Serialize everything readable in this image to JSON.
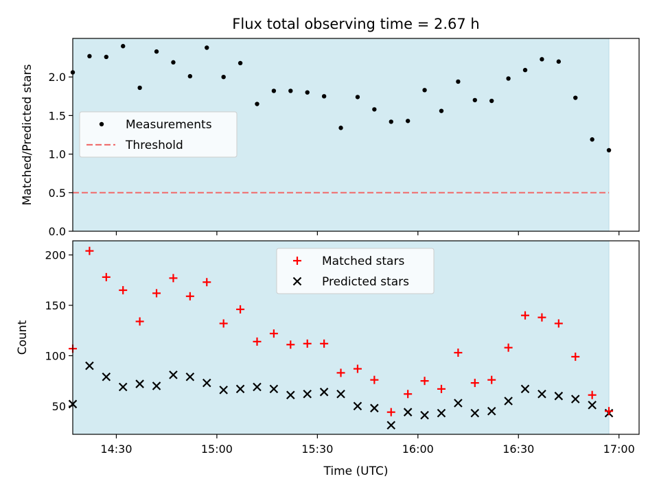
{
  "chart_data": [
    {
      "type": "scatter",
      "title": "Flux total observing time = 2.67 h",
      "xlabel": "",
      "ylabel": "Matched/Predicted stars",
      "xlim": [
        "14:17",
        "17:06"
      ],
      "ylim": [
        0,
        2.5
      ],
      "yticks": [
        "0.0",
        "0.5",
        "1.0",
        "1.5",
        "2.0"
      ],
      "grid": false,
      "legend_position": "center-left",
      "shaded_span": [
        "14:17",
        "16:57"
      ],
      "threshold": 0.5,
      "series": [
        {
          "name": "Measurements",
          "color": "#000000",
          "marker": "dot",
          "x": [
            "14:17",
            "14:22",
            "14:27",
            "14:32",
            "14:37",
            "14:42",
            "14:47",
            "14:52",
            "14:57",
            "15:02",
            "15:07",
            "15:12",
            "15:17",
            "15:22",
            "15:27",
            "15:32",
            "15:37",
            "15:42",
            "15:47",
            "15:52",
            "15:57",
            "16:02",
            "16:07",
            "16:12",
            "16:17",
            "16:22",
            "16:27",
            "16:32",
            "16:37",
            "16:42",
            "16:47",
            "16:52",
            "16:57"
          ],
          "y": [
            2.06,
            2.27,
            2.26,
            2.4,
            1.86,
            2.33,
            2.19,
            2.01,
            2.38,
            2.0,
            2.18,
            1.65,
            1.82,
            1.82,
            1.8,
            1.75,
            1.34,
            1.74,
            1.58,
            1.42,
            1.43,
            1.83,
            1.56,
            1.94,
            1.7,
            1.69,
            1.98,
            2.09,
            2.23,
            2.2,
            1.73,
            1.19,
            1.05
          ]
        },
        {
          "name": "Threshold",
          "color": "#f07070",
          "marker": "dashed-line",
          "x": [
            "14:17",
            "16:57"
          ],
          "y": [
            0.5,
            0.5
          ]
        }
      ]
    },
    {
      "type": "scatter",
      "title": "",
      "xlabel": "Time (UTC)",
      "ylabel": "Count",
      "xlim": [
        "14:17",
        "17:06"
      ],
      "xticks": [
        "14:30",
        "15:00",
        "15:30",
        "16:00",
        "16:30",
        "17:00"
      ],
      "ylim": [
        22,
        214
      ],
      "yticks": [
        "50",
        "100",
        "150",
        "200"
      ],
      "grid": false,
      "legend_position": "top-center",
      "shaded_span": [
        "14:17",
        "16:57"
      ],
      "series": [
        {
          "name": "Matched stars",
          "color": "#ff0000",
          "marker": "plus",
          "x": [
            "14:17",
            "14:22",
            "14:27",
            "14:32",
            "14:37",
            "14:42",
            "14:47",
            "14:52",
            "14:57",
            "15:02",
            "15:07",
            "15:12",
            "15:17",
            "15:22",
            "15:27",
            "15:32",
            "15:37",
            "15:42",
            "15:47",
            "15:52",
            "15:57",
            "16:02",
            "16:07",
            "16:12",
            "16:17",
            "16:22",
            "16:27",
            "16:32",
            "16:37",
            "16:42",
            "16:47",
            "16:52",
            "16:57"
          ],
          "y": [
            107,
            204,
            178,
            165,
            134,
            162,
            177,
            159,
            173,
            132,
            146,
            114,
            122,
            111,
            112,
            112,
            83,
            87,
            76,
            44,
            62,
            75,
            67,
            103,
            73,
            76,
            108,
            140,
            138,
            132,
            99,
            61,
            45
          ]
        },
        {
          "name": "Predicted stars",
          "color": "#000000",
          "marker": "x",
          "x": [
            "14:17",
            "14:22",
            "14:27",
            "14:32",
            "14:37",
            "14:42",
            "14:47",
            "14:52",
            "14:57",
            "15:02",
            "15:07",
            "15:12",
            "15:17",
            "15:22",
            "15:27",
            "15:32",
            "15:37",
            "15:42",
            "15:47",
            "15:52",
            "15:57",
            "16:02",
            "16:07",
            "16:12",
            "16:17",
            "16:22",
            "16:27",
            "16:32",
            "16:37",
            "16:42",
            "16:47",
            "16:52",
            "16:57"
          ],
          "y": [
            52,
            90,
            79,
            69,
            72,
            70,
            81,
            79,
            73,
            66,
            67,
            69,
            67,
            61,
            62,
            64,
            62,
            50,
            48,
            31,
            44,
            41,
            43,
            53,
            43,
            45,
            55,
            67,
            62,
            60,
            57,
            51,
            43
          ]
        }
      ]
    }
  ],
  "colors": {
    "shade": "#d4ebf2",
    "shade_edge": "#b9dce6"
  }
}
